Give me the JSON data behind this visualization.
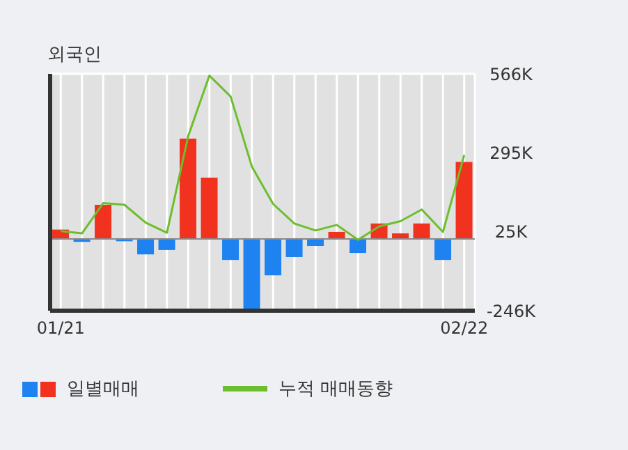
{
  "chart_data": {
    "type": "bar",
    "title": "외국인",
    "categories": [
      "01/21",
      null,
      null,
      null,
      null,
      null,
      null,
      null,
      null,
      null,
      null,
      null,
      null,
      null,
      null,
      null,
      null,
      null,
      null,
      "02/22"
    ],
    "series": [
      {
        "name": "일별매매",
        "colors": [
          "#f0321e",
          "#1e82f0",
          "#f0321e",
          "#1e82f0",
          "#1e82f0",
          "#1e82f0",
          "#f0321e",
          "#f0321e",
          "#1e82f0",
          "#1e82f0",
          "#1e82f0",
          "#1e82f0",
          "#1e82f0",
          "#f0321e",
          "#1e82f0",
          "#f0321e",
          "#f0321e",
          "#f0321e",
          "#1e82f0",
          "#f0321e"
        ],
        "values": [
          32000,
          -10000,
          117000,
          -8000,
          -53000,
          -38000,
          344000,
          210000,
          -72000,
          -240000,
          -125000,
          -62000,
          -24000,
          24000,
          -48000,
          53000,
          19000,
          53000,
          -72000,
          264000
        ]
      },
      {
        "name": "누적 매매동향",
        "type": "line",
        "color": "#6cbf2c",
        "values": [
          27000,
          19000,
          123000,
          117000,
          56000,
          21000,
          352000,
          560000,
          488000,
          248000,
          120000,
          53000,
          29000,
          48000,
          -3000,
          43000,
          61000,
          101000,
          24000,
          288000
        ]
      }
    ],
    "ylim": [
      -246000,
      566000
    ],
    "yticks": [
      {
        "value": -246000,
        "label": "-246K"
      },
      {
        "value": 25000,
        "label": "25K"
      },
      {
        "value": 295000,
        "label": "295K"
      },
      {
        "value": 566000,
        "label": "566K"
      }
    ],
    "ref_lines": [
      {
        "axis": "y",
        "value": 0,
        "color": "#8a8a8a"
      }
    ],
    "grid": true,
    "legend": "bottom",
    "marker": "none"
  }
}
